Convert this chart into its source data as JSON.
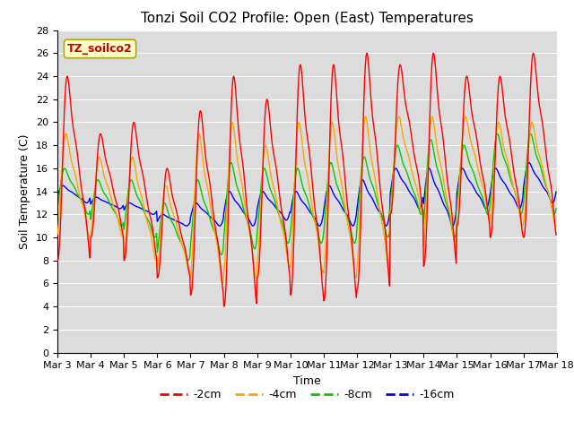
{
  "title": "Tonzi Soil CO2 Profile: Open (East) Temperatures",
  "xlabel": "Time",
  "ylabel": "Soil Temperature (C)",
  "ylim": [
    0,
    28
  ],
  "yticks": [
    0,
    2,
    4,
    6,
    8,
    10,
    12,
    14,
    16,
    18,
    20,
    22,
    24,
    26,
    28
  ],
  "colors": {
    "-2cm": "#FF0000",
    "-4cm": "#FFA500",
    "-8cm": "#00CC00",
    "-16cm": "#0000FF"
  },
  "legend_label": "TZ_soilco2",
  "legend_label_color": "#CC0000",
  "legend_box_facecolor": "#FFFFCC",
  "legend_box_edgecolor": "#AAAA00",
  "background_color": "#DCDCDC",
  "grid_color": "#FFFFFF",
  "title_fontsize": 11,
  "axis_fontsize": 9,
  "tick_fontsize": 8,
  "n_days": 15,
  "n_per_day": 48
}
